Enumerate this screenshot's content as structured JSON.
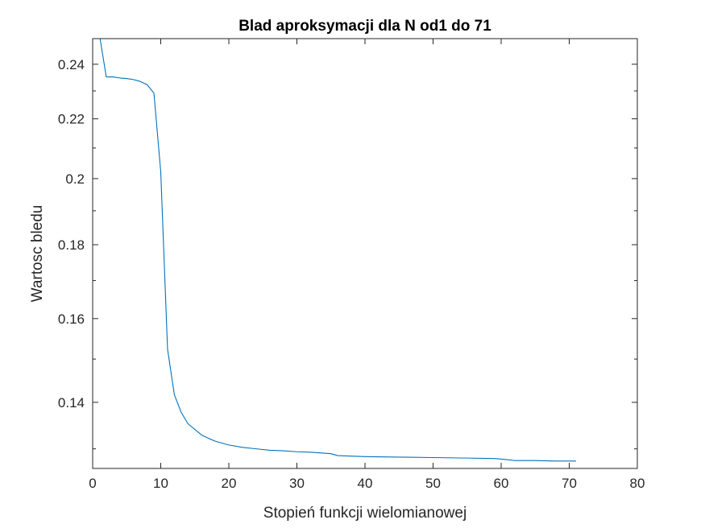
{
  "chart_data": {
    "type": "line",
    "title": "Blad aproksymacji dla N od1 do 71",
    "xlabel": "Stopień funkcji wielomianowej",
    "ylabel": "Wartosc bledu",
    "xlim": [
      0,
      80
    ],
    "ylim": [
      0.126,
      0.25
    ],
    "y_scale": "log",
    "grid": false,
    "box": true,
    "x_ticks": [
      0,
      10,
      20,
      30,
      40,
      50,
      60,
      70,
      80
    ],
    "x_tick_labels": [
      "0",
      "10",
      "20",
      "30",
      "40",
      "50",
      "60",
      "70",
      "80"
    ],
    "y_ticks": [
      0.14,
      0.16,
      0.18,
      0.2,
      0.22,
      0.24
    ],
    "y_tick_labels": [
      "0.14",
      "0.16",
      "0.18",
      "0.2",
      "0.22",
      "0.24"
    ],
    "series": [
      {
        "color": "#0072BD",
        "x": [
          1,
          2,
          3,
          4,
          5,
          6,
          7,
          8,
          9,
          10,
          11,
          12,
          13,
          14,
          15,
          16,
          17,
          18,
          19,
          20,
          22,
          24,
          26,
          28,
          30,
          32,
          34,
          35,
          36,
          38,
          40,
          45,
          50,
          55,
          59,
          60,
          62,
          65,
          68,
          71
        ],
        "y": [
          0.2515,
          0.2352,
          0.2352,
          0.2348,
          0.2346,
          0.2342,
          0.2335,
          0.2323,
          0.2292,
          0.2022,
          0.1524,
          0.1417,
          0.1378,
          0.1353,
          0.1341,
          0.1329,
          0.1322,
          0.1316,
          0.1312,
          0.1308,
          0.1303,
          0.13,
          0.1297,
          0.1296,
          0.1294,
          0.1293,
          0.1291,
          0.129,
          0.1286,
          0.1285,
          0.1284,
          0.1283,
          0.1282,
          0.1281,
          0.128,
          0.1279,
          0.1276,
          0.1276,
          0.1275,
          0.1275
        ]
      }
    ]
  }
}
